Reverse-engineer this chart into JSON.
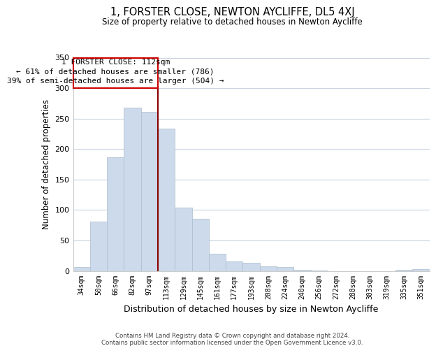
{
  "title": "1, FORSTER CLOSE, NEWTON AYCLIFFE, DL5 4XJ",
  "subtitle": "Size of property relative to detached houses in Newton Aycliffe",
  "xlabel": "Distribution of detached houses by size in Newton Aycliffe",
  "ylabel": "Number of detached properties",
  "bar_labels": [
    "34sqm",
    "50sqm",
    "66sqm",
    "82sqm",
    "97sqm",
    "113sqm",
    "129sqm",
    "145sqm",
    "161sqm",
    "177sqm",
    "193sqm",
    "208sqm",
    "224sqm",
    "240sqm",
    "256sqm",
    "272sqm",
    "288sqm",
    "303sqm",
    "319sqm",
    "335sqm",
    "351sqm"
  ],
  "bar_heights": [
    6,
    81,
    186,
    268,
    261,
    233,
    104,
    85,
    28,
    16,
    13,
    8,
    6,
    2,
    1,
    0,
    0,
    0,
    0,
    2,
    3
  ],
  "bar_color": "#ccdaeb",
  "bar_edge_color": "#aabccc",
  "vline_color": "#8b0000",
  "annotation_title": "1 FORSTER CLOSE: 112sqm",
  "annotation_line1": "← 61% of detached houses are smaller (786)",
  "annotation_line2": "39% of semi-detached houses are larger (504) →",
  "annotation_box_color": "#ffffff",
  "annotation_box_edge": "#cc0000",
  "ylim": [
    0,
    350
  ],
  "footer_line1": "Contains HM Land Registry data © Crown copyright and database right 2024.",
  "footer_line2": "Contains public sector information licensed under the Open Government Licence v3.0.",
  "background_color": "#ffffff",
  "grid_color": "#c8d4e0"
}
